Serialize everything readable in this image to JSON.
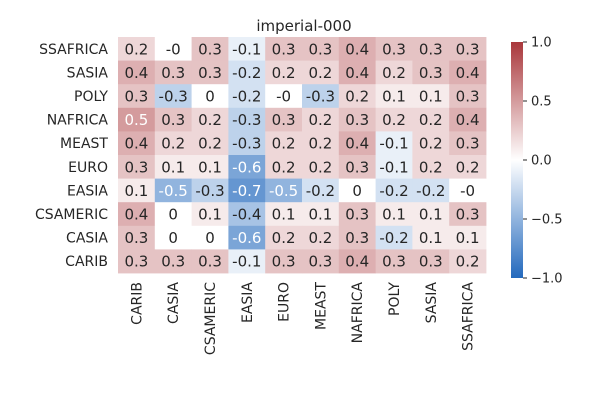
{
  "chart_data": {
    "type": "heatmap",
    "title": "imperial-000",
    "rows": [
      "SSAFRICA",
      "SASIA",
      "POLY",
      "NAFRICA",
      "MEAST",
      "EURO",
      "EASIA",
      "CSAMERIC",
      "CASIA",
      "CARIB"
    ],
    "columns": [
      "CARIB",
      "CASIA",
      "CSAMERIC",
      "EASIA",
      "EURO",
      "MEAST",
      "NAFRICA",
      "POLY",
      "SASIA",
      "SSAFRICA"
    ],
    "values": [
      [
        0.2,
        -0.0,
        0.3,
        -0.1,
        0.3,
        0.3,
        0.4,
        0.3,
        0.3,
        0.3
      ],
      [
        0.4,
        0.3,
        0.3,
        -0.2,
        0.2,
        0.2,
        0.4,
        0.2,
        0.3,
        0.4
      ],
      [
        0.3,
        -0.3,
        0,
        -0.2,
        -0.0,
        -0.3,
        0.2,
        0.1,
        0.1,
        0.3
      ],
      [
        0.5,
        0.3,
        0.2,
        -0.3,
        0.3,
        0.2,
        0.3,
        0.2,
        0.2,
        0.4
      ],
      [
        0.4,
        0.2,
        0.2,
        -0.3,
        0.2,
        0.2,
        0.4,
        -0.1,
        0.2,
        0.3
      ],
      [
        0.3,
        0.1,
        0.1,
        -0.6,
        0.2,
        0.2,
        0.3,
        -0.1,
        0.2,
        0.2
      ],
      [
        0.1,
        -0.5,
        -0.3,
        -0.7,
        -0.5,
        -0.2,
        0,
        -0.2,
        -0.2,
        -0.0
      ],
      [
        0.4,
        0,
        0.1,
        -0.4,
        0.1,
        0.1,
        0.3,
        0.1,
        0.1,
        0.3
      ],
      [
        0.3,
        0,
        0,
        -0.6,
        0.2,
        0.2,
        0.3,
        -0.2,
        0.1,
        0.1
      ],
      [
        0.3,
        0.3,
        0.3,
        -0.1,
        0.3,
        0.3,
        0.4,
        0.3,
        0.3,
        0.2
      ]
    ],
    "labels": [
      [
        "0.2",
        "-0",
        "0.3",
        "-0.1",
        "0.3",
        "0.3",
        "0.4",
        "0.3",
        "0.3",
        "0.3"
      ],
      [
        "0.4",
        "0.3",
        "0.3",
        "-0.2",
        "0.2",
        "0.2",
        "0.4",
        "0.2",
        "0.3",
        "0.4"
      ],
      [
        "0.3",
        "-0.3",
        "0",
        "-0.2",
        "-0",
        "-0.3",
        "0.2",
        "0.1",
        "0.1",
        "0.3"
      ],
      [
        "0.5",
        "0.3",
        "0.2",
        "-0.3",
        "0.3",
        "0.2",
        "0.3",
        "0.2",
        "0.2",
        "0.4"
      ],
      [
        "0.4",
        "0.2",
        "0.2",
        "-0.3",
        "0.2",
        "0.2",
        "0.4",
        "-0.1",
        "0.2",
        "0.3"
      ],
      [
        "0.3",
        "0.1",
        "0.1",
        "-0.6",
        "0.2",
        "0.2",
        "0.3",
        "-0.1",
        "0.2",
        "0.2"
      ],
      [
        "0.1",
        "-0.5",
        "-0.3",
        "-0.7",
        "-0.5",
        "-0.2",
        "0",
        "-0.2",
        "-0.2",
        "-0"
      ],
      [
        "0.4",
        "0",
        "0.1",
        "-0.4",
        "0.1",
        "0.1",
        "0.3",
        "0.1",
        "0.1",
        "0.3"
      ],
      [
        "0.3",
        "0",
        "0",
        "-0.6",
        "0.2",
        "0.2",
        "0.3",
        "-0.2",
        "0.1",
        "0.1"
      ],
      [
        "0.3",
        "0.3",
        "0.3",
        "-0.1",
        "0.3",
        "0.3",
        "0.4",
        "0.3",
        "0.3",
        "0.2"
      ]
    ],
    "colorbar": {
      "range": [
        -1.0,
        1.0
      ],
      "ticks": [
        1.0,
        0.5,
        0.0,
        -0.5,
        -1.0
      ],
      "tick_labels": [
        "1.0",
        "0.5",
        "0.0",
        "−0.5",
        "−1.0"
      ],
      "colormap": "vlag",
      "colors": [
        "#2369bd",
        "#ffffff",
        "#a9373b"
      ]
    },
    "grid": false,
    "legend": "colorbar-right"
  }
}
